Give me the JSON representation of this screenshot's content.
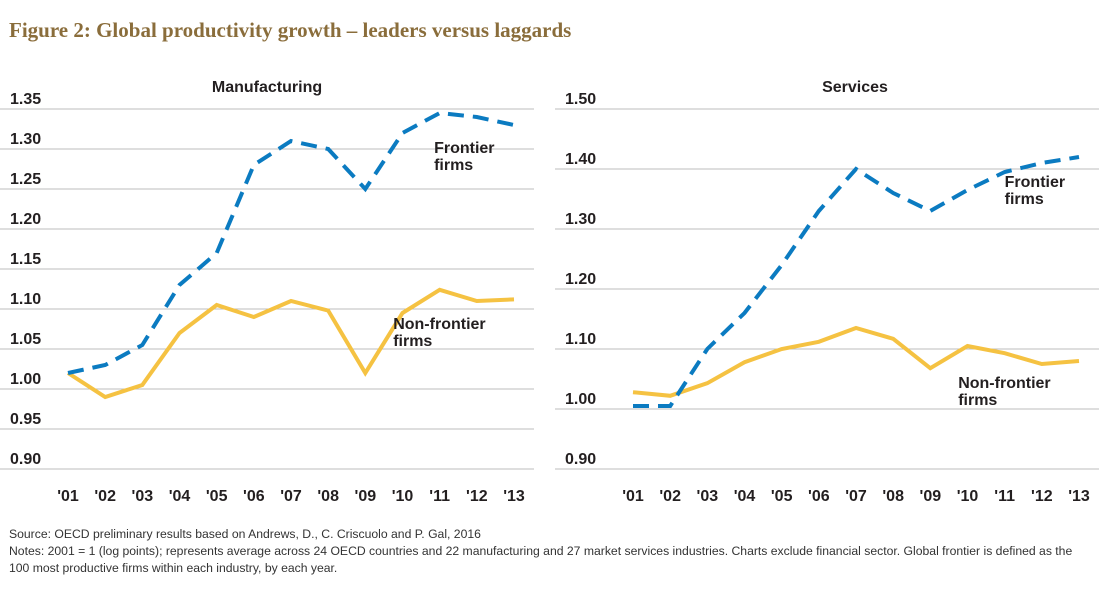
{
  "figure_title": "Figure 2: Global productivity growth – leaders versus laggards",
  "footer": {
    "source": "Source: OECD preliminary results based on Andrews, D., C. Criscuolo and P. Gal, 2016",
    "notes": "Notes: 2001 = 1 (log points); represents average across 24 OECD countries and 22 manufacturing and 27 market services industries. Charts exclude financial sector. Global frontier is defined as the 100 most productive firms within each industry, by each year."
  },
  "colors": {
    "frontier": "#0b7bc1",
    "non_frontier": "#f5c242",
    "title": "#8a6d3b",
    "grid": "#bdbdbd"
  },
  "chart_data": [
    {
      "type": "line",
      "title": "Manufacturing",
      "x": [
        "'01",
        "'02",
        "'03",
        "'04",
        "'05",
        "'06",
        "'07",
        "'08",
        "'09",
        "'10",
        "'11",
        "'12",
        "'13"
      ],
      "ylim": [
        0.9,
        1.35
      ],
      "yticks": [
        "0.90",
        "0.95",
        "1.00",
        "1.05",
        "1.10",
        "1.15",
        "1.20",
        "1.25",
        "1.30",
        "1.35"
      ],
      "grid": true,
      "series": [
        {
          "name": "Frontier firms",
          "style": "dashed",
          "color_key": "frontier",
          "values": [
            1.02,
            1.03,
            1.055,
            1.13,
            1.17,
            1.28,
            1.31,
            1.3,
            1.25,
            1.32,
            1.345,
            1.34,
            1.33
          ],
          "label_lines": [
            "Frontier",
            "firms"
          ],
          "label_at": [
            9.85,
            1.295
          ]
        },
        {
          "name": "Non-frontier firms",
          "style": "solid",
          "color_key": "non_frontier",
          "values": [
            1.02,
            0.99,
            1.005,
            1.07,
            1.105,
            1.09,
            1.11,
            1.098,
            1.02,
            1.095,
            1.124,
            1.11,
            1.112
          ],
          "label_lines": [
            "Non-frontier",
            "firms"
          ],
          "label_at": [
            8.75,
            1.075
          ]
        }
      ]
    },
    {
      "type": "line",
      "title": "Services",
      "x": [
        "'01",
        "'02",
        "'03",
        "'04",
        "'05",
        "'06",
        "'07",
        "'08",
        "'09",
        "'10",
        "'11",
        "'12",
        "'13"
      ],
      "ylim": [
        0.9,
        1.5
      ],
      "yticks": [
        "0.90",
        "1.00",
        "1.10",
        "1.20",
        "1.30",
        "1.40",
        "1.50"
      ],
      "grid": true,
      "series": [
        {
          "name": "Frontier firms",
          "style": "dashed",
          "color_key": "frontier",
          "values": [
            1.005,
            1.005,
            1.1,
            1.16,
            1.24,
            1.33,
            1.4,
            1.36,
            1.33,
            1.365,
            1.395,
            1.41,
            1.42
          ],
          "label_lines": [
            "Frontier",
            "firms"
          ],
          "label_at": [
            10.0,
            1.37
          ]
        },
        {
          "name": "Non-frontier firms",
          "style": "solid",
          "color_key": "non_frontier",
          "values": [
            1.028,
            1.022,
            1.043,
            1.078,
            1.1,
            1.112,
            1.135,
            1.117,
            1.068,
            1.105,
            1.093,
            1.075,
            1.08
          ],
          "label_lines": [
            "Non-frontier",
            "firms"
          ],
          "label_at": [
            8.75,
            1.035
          ]
        }
      ]
    }
  ]
}
